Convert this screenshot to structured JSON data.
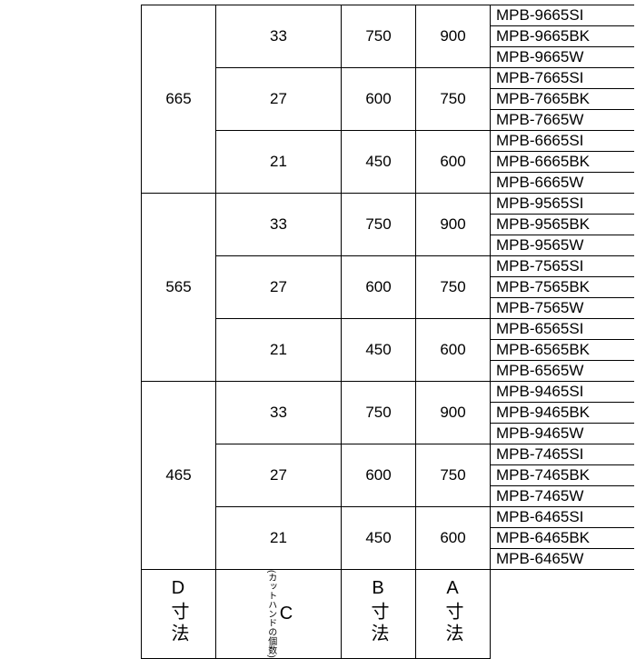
{
  "header": {
    "D": "D寸法",
    "C_note": "(カットハンドの個数)",
    "C": "C",
    "B": "B寸法",
    "A": "A寸法"
  },
  "groups": [
    {
      "D": "665",
      "subs": [
        {
          "C": "33",
          "B": "750",
          "A": "900",
          "codes": [
            "MPB-9665SI",
            "MPB-9665BK",
            "MPB-9665W"
          ]
        },
        {
          "C": "27",
          "B": "600",
          "A": "750",
          "codes": [
            "MPB-7665SI",
            "MPB-7665BK",
            "MPB-7665W"
          ]
        },
        {
          "C": "21",
          "B": "450",
          "A": "600",
          "codes": [
            "MPB-6665SI",
            "MPB-6665BK",
            "MPB-6665W"
          ]
        }
      ]
    },
    {
      "D": "565",
      "subs": [
        {
          "C": "33",
          "B": "750",
          "A": "900",
          "codes": [
            "MPB-9565SI",
            "MPB-9565BK",
            "MPB-9565W"
          ]
        },
        {
          "C": "27",
          "B": "600",
          "A": "750",
          "codes": [
            "MPB-7565SI",
            "MPB-7565BK",
            "MPB-7565W"
          ]
        },
        {
          "C": "21",
          "B": "450",
          "A": "600",
          "codes": [
            "MPB-6565SI",
            "MPB-6565BK",
            "MPB-6565W"
          ]
        }
      ]
    },
    {
      "D": "465",
      "subs": [
        {
          "C": "33",
          "B": "750",
          "A": "900",
          "codes": [
            "MPB-9465SI",
            "MPB-9465BK",
            "MPB-9465W"
          ]
        },
        {
          "C": "27",
          "B": "600",
          "A": "750",
          "codes": [
            "MPB-7465SI",
            "MPB-7465BK",
            "MPB-7465W"
          ]
        },
        {
          "C": "21",
          "B": "450",
          "A": "600",
          "codes": [
            "MPB-6465SI",
            "MPB-6465BK",
            "MPB-6465W"
          ]
        }
      ]
    }
  ]
}
